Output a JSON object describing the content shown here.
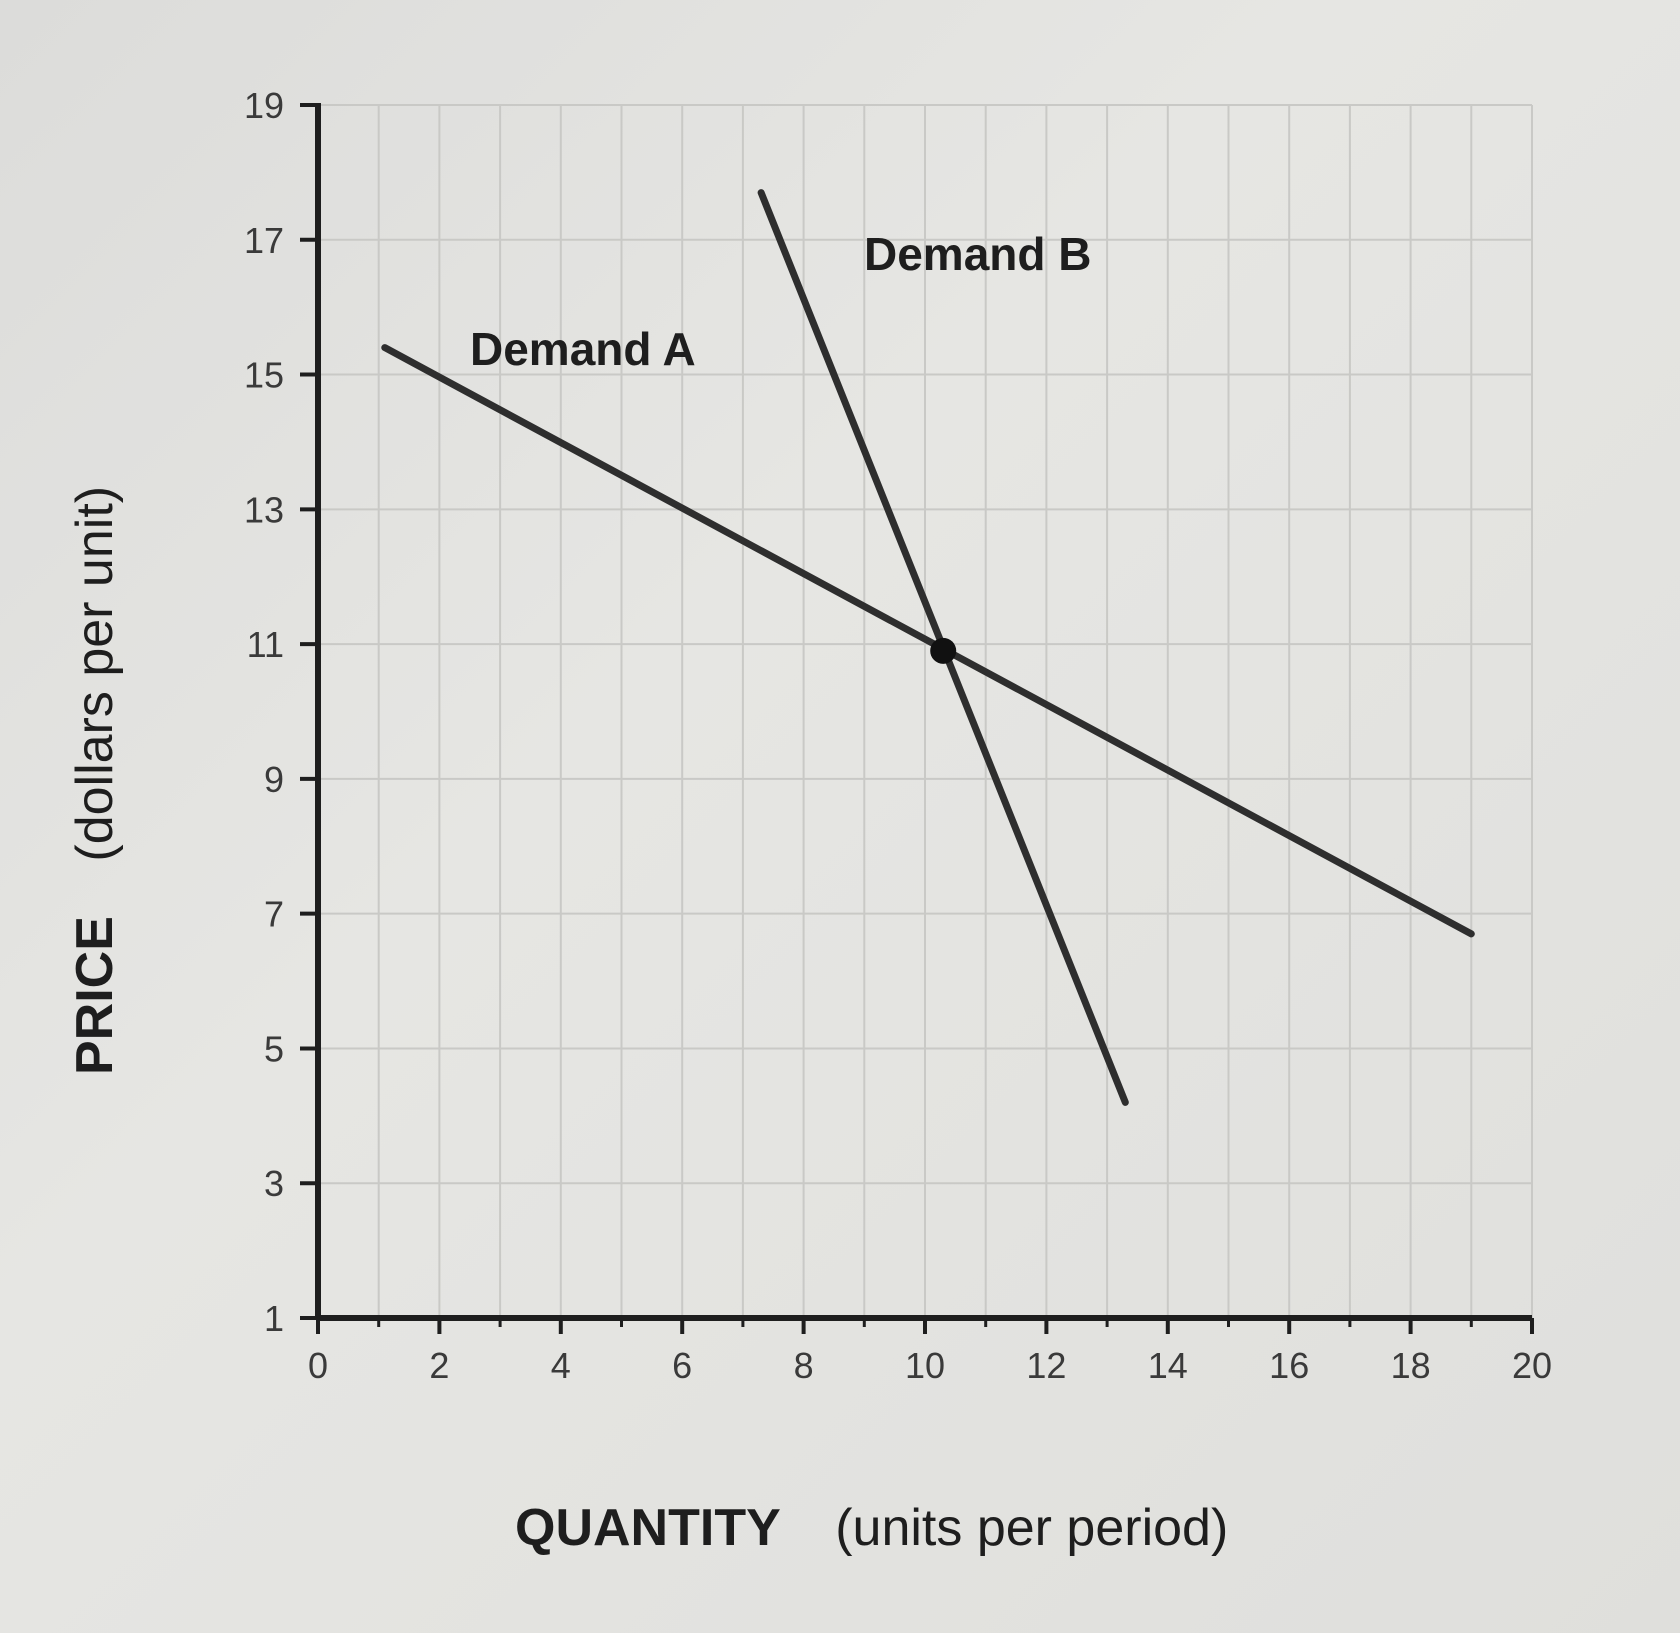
{
  "chart_data": {
    "type": "line",
    "xlabel_main": "QUANTITY",
    "xlabel_unit": "(units per period)",
    "ylabel_main": "PRICE",
    "ylabel_unit": "(dollars per unit)",
    "xlim": [
      0,
      20
    ],
    "ylim": [
      1,
      19
    ],
    "x_ticks": [
      "0",
      "2",
      "4",
      "6",
      "8",
      "10",
      "12",
      "14",
      "16",
      "18",
      "20"
    ],
    "y_ticks": [
      "1",
      "3",
      "5",
      "7",
      "9",
      "11",
      "13",
      "15",
      "17",
      "19"
    ],
    "grid": true,
    "series": [
      {
        "name": "Demand A",
        "points": [
          [
            1.1,
            15.4
          ],
          [
            19.0,
            6.7
          ]
        ]
      },
      {
        "name": "Demand B",
        "points": [
          [
            7.3,
            17.7
          ],
          [
            13.3,
            4.2
          ]
        ]
      }
    ],
    "marker": {
      "x": 10.3,
      "y": 10.9
    },
    "line_color": "#2e2e2e"
  }
}
